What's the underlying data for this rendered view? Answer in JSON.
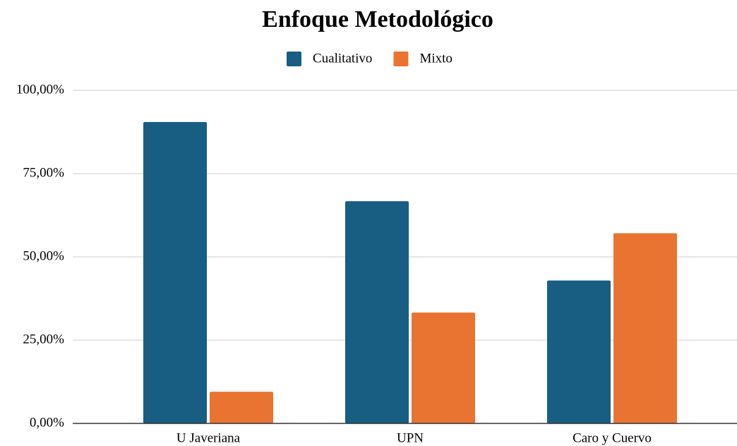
{
  "chart_data": {
    "type": "bar",
    "title": "Enfoque Metodológico",
    "categories": [
      "U Javeriana",
      "UPN",
      "Caro y Cuervo"
    ],
    "series": [
      {
        "name": "Cualitativo",
        "color": "#175e82",
        "values": [
          90.5,
          66.7,
          42.9
        ]
      },
      {
        "name": "Mixto",
        "color": "#e97432",
        "values": [
          9.5,
          33.3,
          57.1
        ]
      }
    ],
    "ylim": [
      0,
      100
    ],
    "yticks": [
      {
        "value": 0,
        "label": "0,00%"
      },
      {
        "value": 25,
        "label": "25,00%"
      },
      {
        "value": 50,
        "label": "50,00%"
      },
      {
        "value": 75,
        "label": "75,00%"
      },
      {
        "value": 100,
        "label": "100,00%"
      }
    ],
    "grid": true,
    "legend": "top"
  }
}
